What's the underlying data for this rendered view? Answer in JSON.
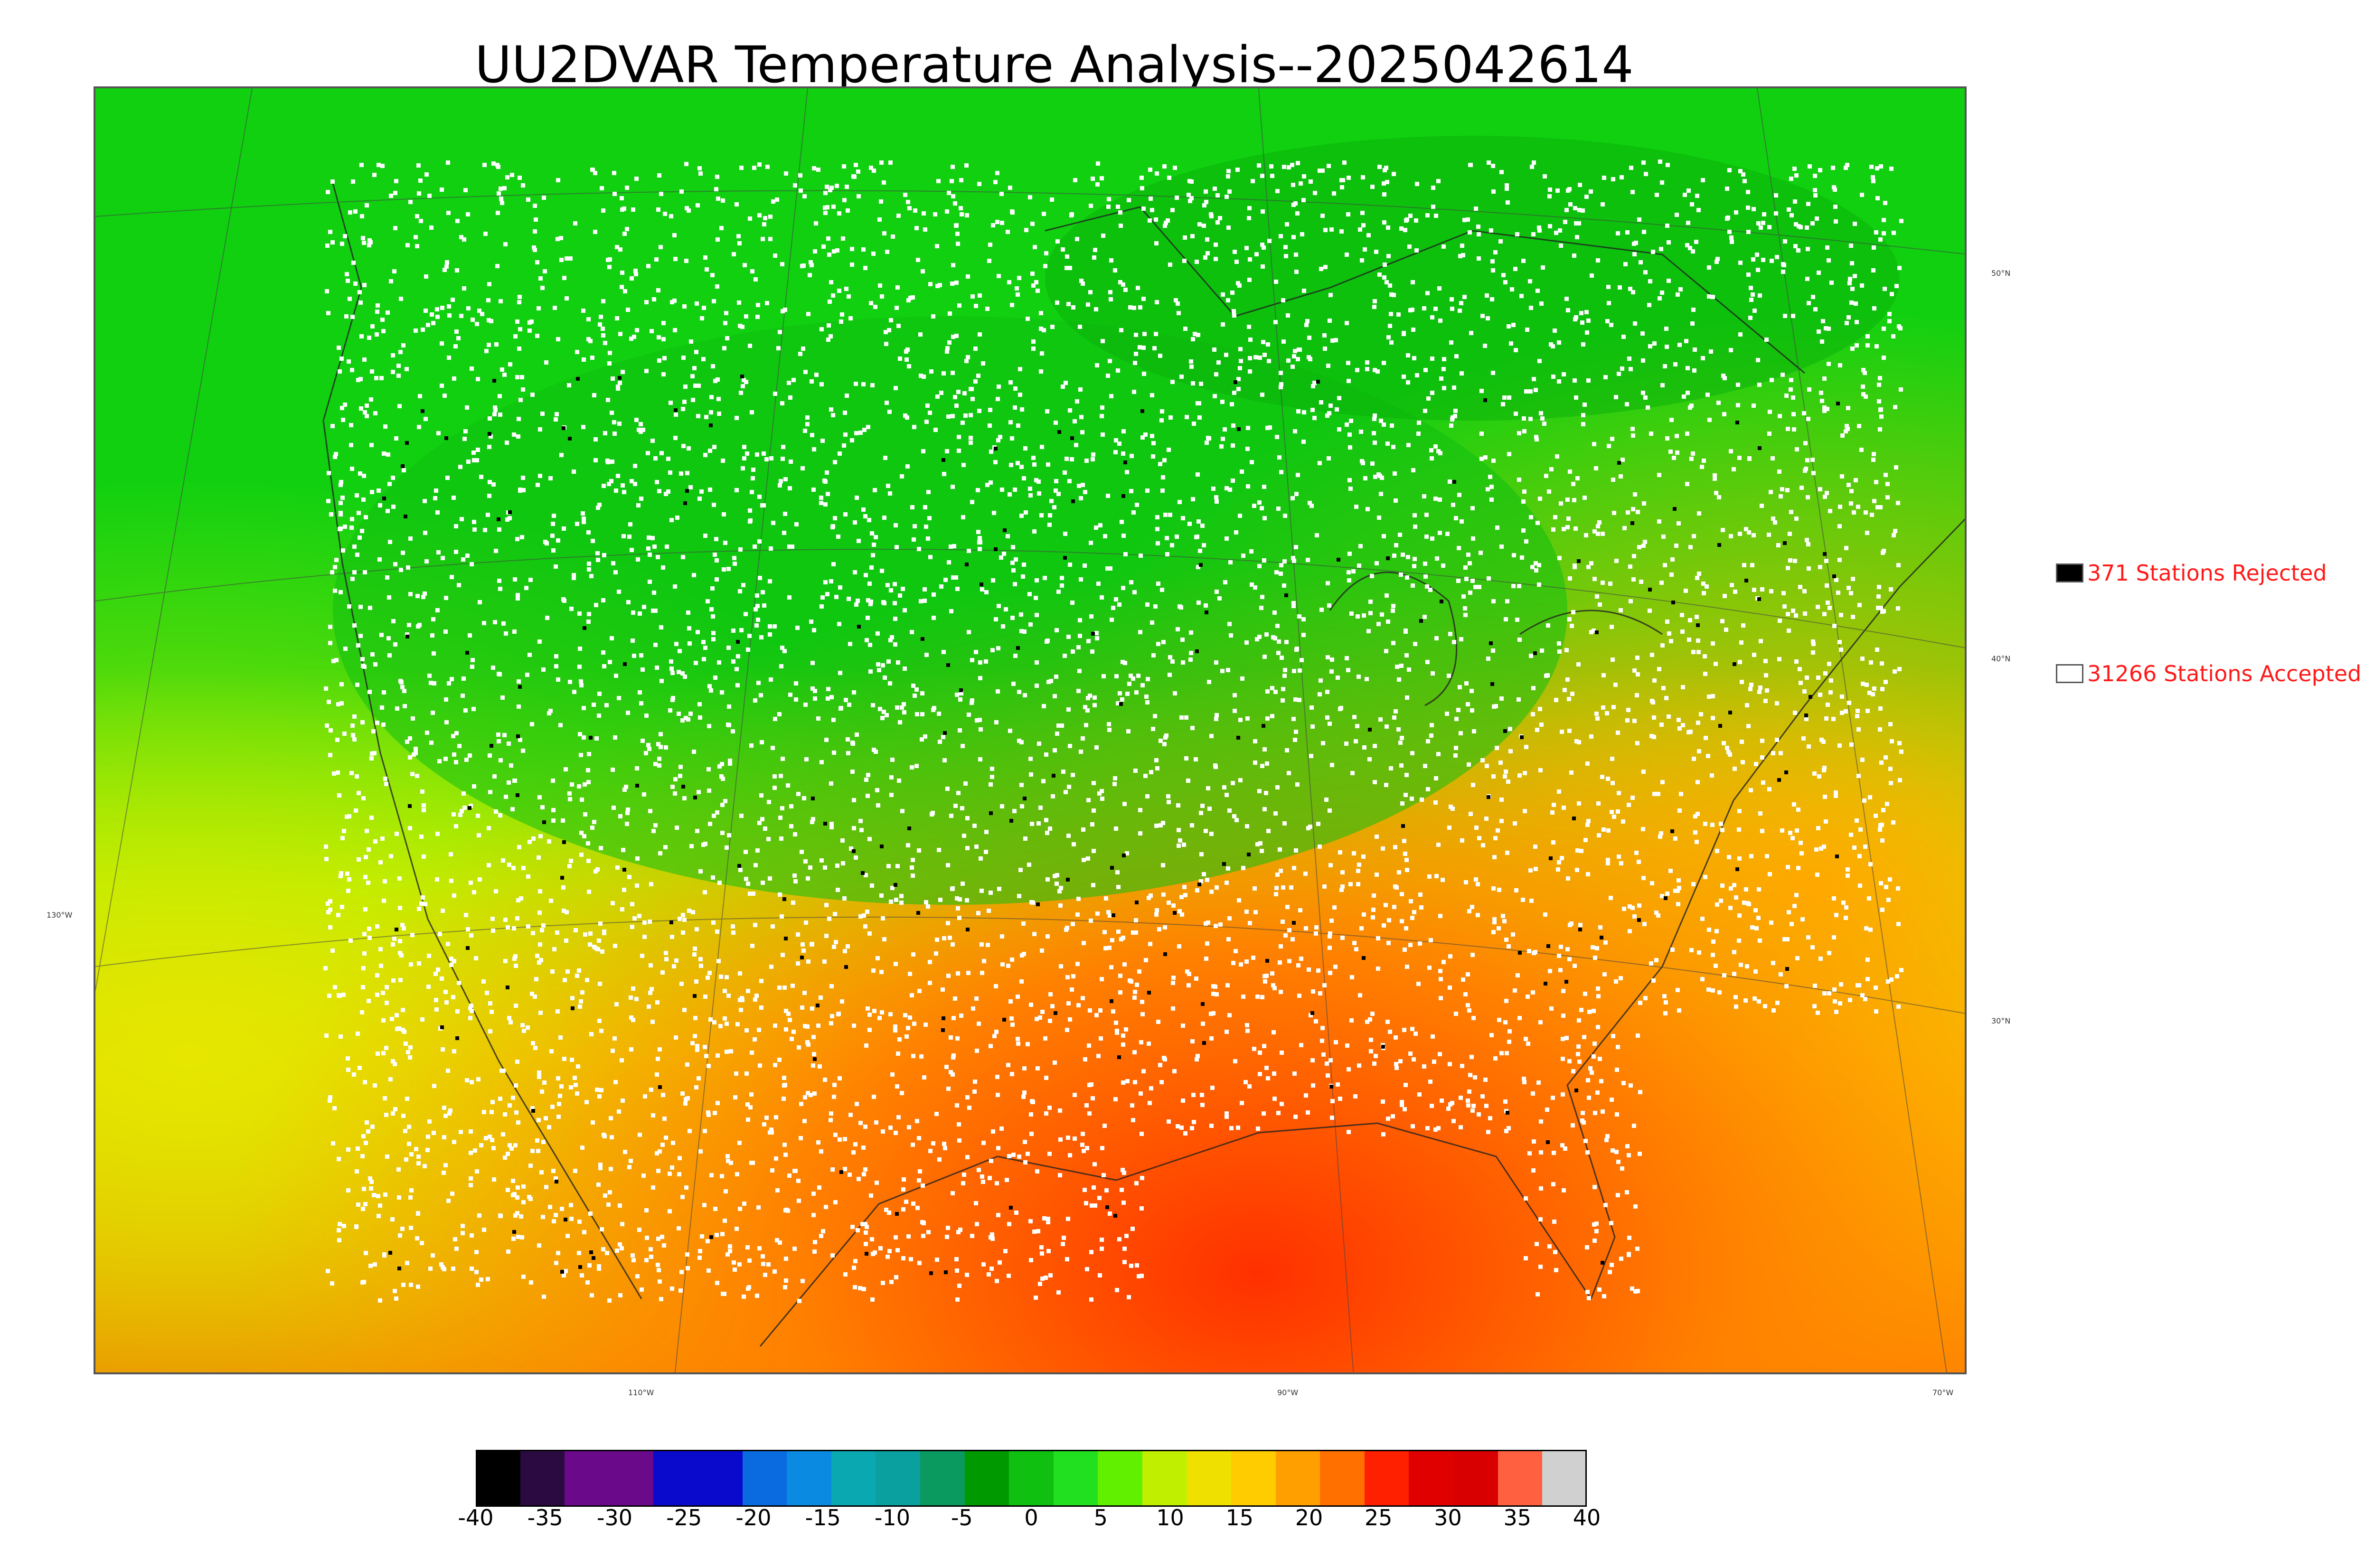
{
  "title": "UU2DVAR Temperature Analysis--2025042614",
  "legend": {
    "rejected_label": "371 Stations Rejected",
    "accepted_label": "31266 Stations Accepted",
    "rejected_color": "#000000",
    "accepted_color": "#ffffff"
  },
  "lat_labels": [
    "50°N",
    "40°N",
    "30°N"
  ],
  "lon_labels": [
    "130°W",
    "110°W",
    "90°W",
    "70°W"
  ],
  "colorbar": {
    "ticks": [
      "-40",
      "-35",
      "-30",
      "-25",
      "-20",
      "-15",
      "-10",
      "-5",
      "0",
      "5",
      "10",
      "15",
      "20",
      "25",
      "30",
      "35",
      "40"
    ],
    "range": [
      -40,
      40
    ],
    "colors": [
      "#000000",
      "#2a0a40",
      "#6a0a8a",
      "#6a0a8a",
      "#0a0acc",
      "#0a0acc",
      "#0a6ae0",
      "#0a8ae0",
      "#0aa8b0",
      "#0aa0a0",
      "#0a9a60",
      "#009a00",
      "#10c010",
      "#20e020",
      "#60f000",
      "#c0f000",
      "#f0e000",
      "#ffcc00",
      "#ffa000",
      "#ff7000",
      "#ff2000",
      "#e00000",
      "#d80000",
      "#ff6040",
      "#d0d0d0"
    ]
  }
}
